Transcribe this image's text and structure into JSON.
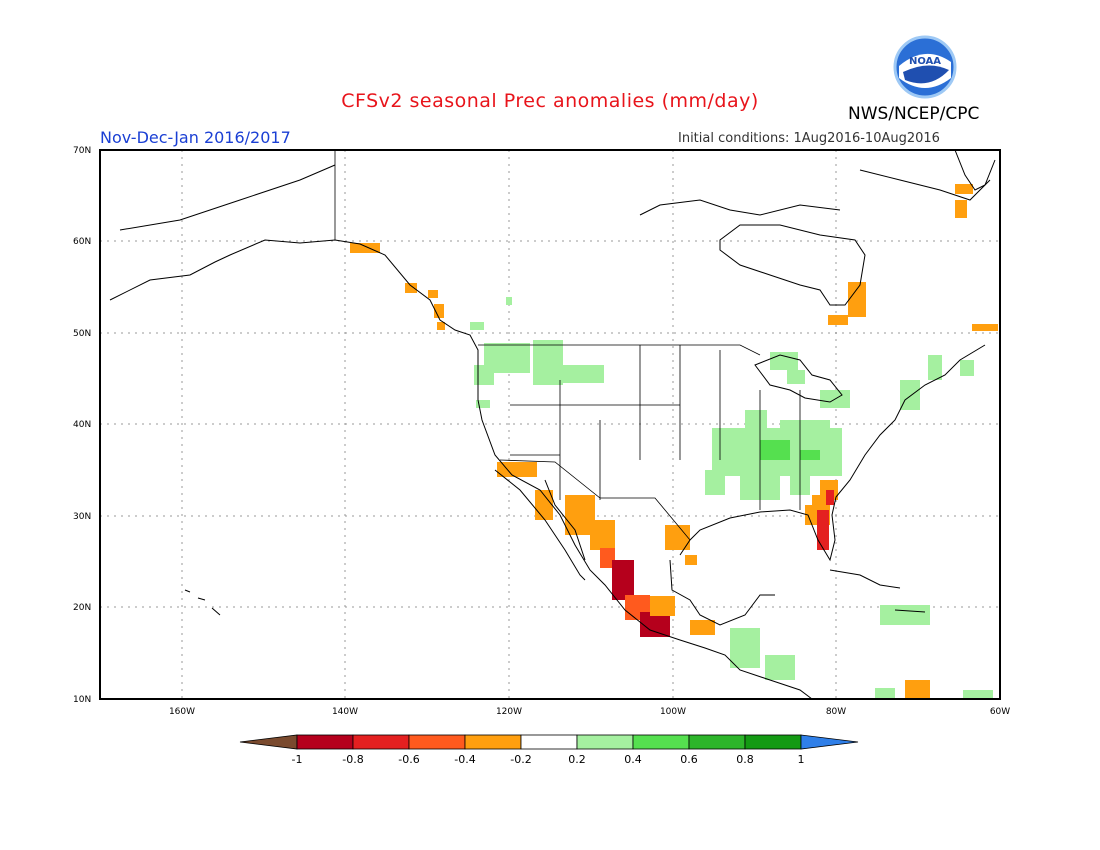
{
  "header": {
    "title": "CFSv2 seasonal Prec anomalies (mm/day)",
    "organization": "NWS/NCEP/CPC",
    "logo_text": "NOAA",
    "season": "Nov-Dec-Jan 2016/2017",
    "initial_conditions": "Initial conditions: 1Aug2016-10Aug2016"
  },
  "map": {
    "lat_labels": [
      "70N",
      "60N",
      "50N",
      "40N",
      "30N",
      "20N",
      "10N"
    ],
    "lon_labels": [
      "160W",
      "140W",
      "120W",
      "100W",
      "80W",
      "60W"
    ],
    "extent": {
      "lon_min": -170,
      "lon_max": -60,
      "lat_min": 10,
      "lat_max": 70
    },
    "gridlines": "dotted"
  },
  "colorbar": {
    "labels": [
      "-1",
      "-0.8",
      "-0.6",
      "-0.4",
      "-0.2",
      "0.2",
      "0.4",
      "0.6",
      "0.8",
      "1"
    ],
    "colors": {
      "lt_-1": "#7a4a2e",
      "-1_-0.8": "#b5001c",
      "-0.8_-0.6": "#e42020",
      "-0.6_-0.4": "#ff5a1e",
      "-0.4_-0.2": "#ff9f0f",
      "-0.2_0.2": "#ffffff",
      "0.2_0.4": "#a5f0a0",
      "0.4_0.6": "#55e04f",
      "0.6_0.8": "#2db52a",
      "0.8_1": "#139a13",
      "gt_1": "#2f7fe8"
    }
  }
}
